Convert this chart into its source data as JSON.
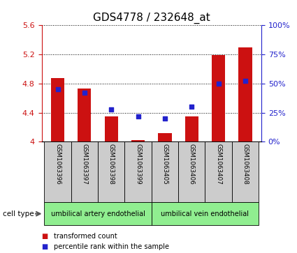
{
  "title": "GDS4778 / 232648_at",
  "samples": [
    "GSM1063396",
    "GSM1063397",
    "GSM1063398",
    "GSM1063399",
    "GSM1063405",
    "GSM1063406",
    "GSM1063407",
    "GSM1063408"
  ],
  "transformed_count": [
    4.87,
    4.73,
    4.35,
    4.02,
    4.12,
    4.35,
    5.19,
    5.3
  ],
  "percentile_rank": [
    45,
    42,
    28,
    22,
    20,
    30,
    50,
    52
  ],
  "left_ylim": [
    4.0,
    5.6
  ],
  "right_ylim": [
    0,
    100
  ],
  "left_yticks": [
    4.0,
    4.4,
    4.8,
    5.2,
    5.6
  ],
  "right_yticks": [
    0,
    25,
    50,
    75,
    100
  ],
  "left_ytick_labels": [
    "4",
    "4.4",
    "4.8",
    "5.2",
    "5.6"
  ],
  "right_ytick_labels": [
    "0%",
    "25%",
    "50%",
    "75%",
    "100%"
  ],
  "bar_color": "#cc1111",
  "dot_color": "#2222cc",
  "bar_width": 0.5,
  "cell_types": [
    {
      "label": "umbilical artery endothelial",
      "start": 0,
      "end": 3,
      "color": "#90ee90"
    },
    {
      "label": "umbilical vein endothelial",
      "start": 4,
      "end": 7,
      "color": "#90ee90"
    }
  ],
  "cell_type_label": "cell type",
  "legend_items": [
    {
      "label": "transformed count",
      "color": "#cc1111"
    },
    {
      "label": "percentile rank within the sample",
      "color": "#2222cc"
    }
  ],
  "title_fontsize": 11,
  "axis_tick_color_left": "#cc1111",
  "axis_tick_color_right": "#2222cc",
  "sample_area_color": "#cccccc",
  "fig_width": 4.25,
  "fig_height": 3.63,
  "dpi": 100
}
